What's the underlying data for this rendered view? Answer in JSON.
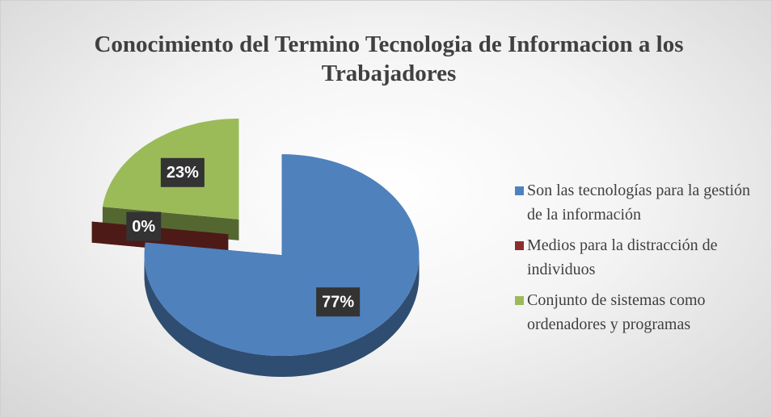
{
  "chart_data": {
    "type": "pie",
    "title": "Conocimiento del Termino Tecnologia de Informacion a los Trabajadores",
    "categories": [
      "Son las tecnologías para la gestión de la información",
      "Medios para la distracción de individuos",
      "Conjunto de sistemas como ordenadores y programas"
    ],
    "values": [
      77,
      0,
      23
    ],
    "value_labels": [
      "77%",
      "0%",
      "23%"
    ],
    "colors": [
      "#4f81bd",
      "#8c2f2c",
      "#9bbb59"
    ],
    "legend": "right"
  }
}
